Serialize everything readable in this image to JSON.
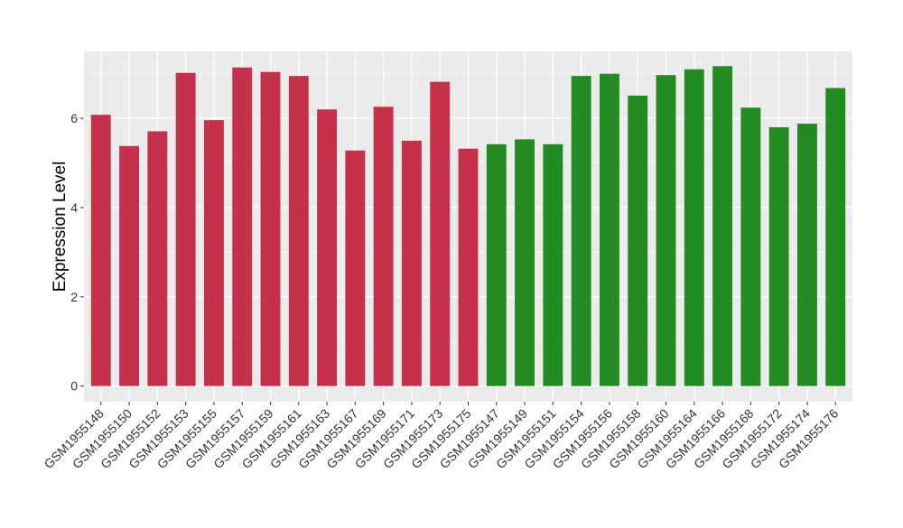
{
  "chart_data": {
    "type": "bar",
    "ylabel": "Expression Level",
    "ylim": [
      -0.35,
      7.5
    ],
    "yticks": [
      0,
      2,
      4,
      6
    ],
    "grid": true,
    "categories": [
      "GSM1955148",
      "GSM1955150",
      "GSM1955152",
      "GSM1955153",
      "GSM1955155",
      "GSM1955157",
      "GSM1955159",
      "GSM1955161",
      "GSM1955163",
      "GSM1955167",
      "GSM1955169",
      "GSM1955171",
      "GSM1955173",
      "GSM1955175",
      "GSM1955147",
      "GSM1955149",
      "GSM1955151",
      "GSM1955154",
      "GSM1955156",
      "GSM1955158",
      "GSM1955160",
      "GSM1955164",
      "GSM1955166",
      "GSM1955168",
      "GSM1955172",
      "GSM1955174",
      "GSM1955176"
    ],
    "values": [
      6.08,
      5.38,
      5.71,
      7.02,
      5.96,
      7.14,
      7.04,
      6.95,
      6.2,
      5.28,
      6.26,
      5.5,
      6.82,
      5.32,
      5.42,
      5.53,
      5.42,
      6.95,
      7.0,
      6.51,
      6.97,
      7.1,
      7.17,
      6.24,
      5.8,
      5.88,
      6.68
    ],
    "group_sizes": [
      14,
      13
    ],
    "colors": [
      "#c5314a",
      "#228b22"
    ]
  }
}
